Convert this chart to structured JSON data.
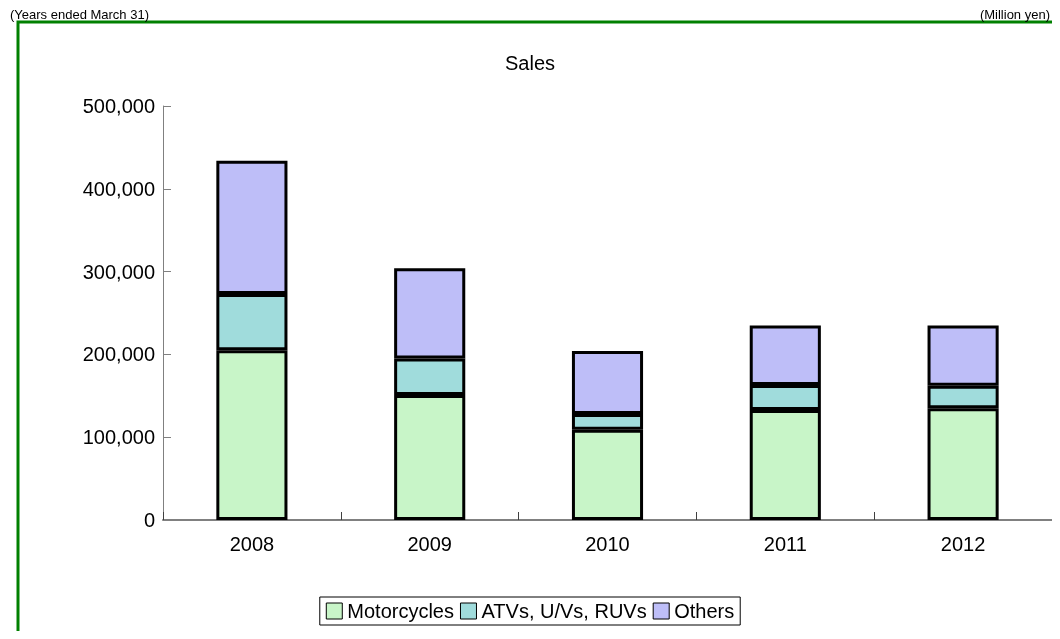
{
  "chart_data": {
    "type": "bar",
    "title": "Sales",
    "annotations": [
      "(Years ended March 31)",
      "(Million yen)"
    ],
    "categories": [
      "2008",
      "2009",
      "2010",
      "2011",
      "2012"
    ],
    "stacked": true,
    "series": [
      {
        "name": "Motorcycles",
        "color": "#c8f5c8",
        "values": [
          205000,
          151000,
          109000,
          133000,
          135000
        ]
      },
      {
        "name": "ATVs, U/Vs, RUVs",
        "color": "#a0dcdc",
        "values": [
          68000,
          44000,
          19000,
          30000,
          27000
        ]
      },
      {
        "name": "Others",
        "color": "#bebef8",
        "values": [
          161000,
          109000,
          76000,
          72000,
          73000
        ]
      }
    ],
    "ylim": [
      0,
      500000
    ],
    "yticks": [
      0,
      {
        "value": 100000,
        "label": "100,000"
      },
      {
        "value": 200000,
        "label": "200,000"
      },
      {
        "value": 300000,
        "label": "300,000"
      },
      {
        "value": 400000,
        "label": "400,000"
      },
      {
        "value": 500000,
        "label": "500,000"
      }
    ],
    "grid": false,
    "legend": "bottom"
  }
}
